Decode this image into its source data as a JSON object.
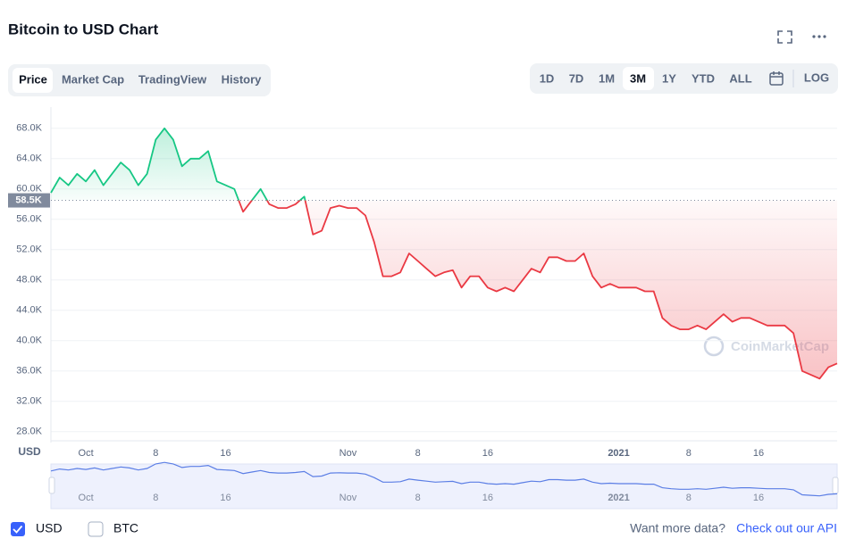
{
  "header": {
    "title": "Bitcoin to USD Chart"
  },
  "tabs": [
    "Price",
    "Market Cap",
    "TradingView",
    "History"
  ],
  "ranges": [
    "1D",
    "7D",
    "1M",
    "3M",
    "1Y",
    "YTD",
    "ALL",
    "LOG"
  ],
  "chart_data": {
    "type": "line",
    "x": [
      null,
      null,
      null,
      null,
      "Oct",
      null,
      null,
      null,
      null,
      null,
      null,
      null,
      "8",
      null,
      null,
      null,
      null,
      null,
      null,
      null,
      "16",
      null,
      null,
      null,
      null,
      null,
      null,
      null,
      null,
      null,
      null,
      null,
      null,
      null,
      "Nov",
      null,
      null,
      null,
      null,
      null,
      null,
      null,
      "8",
      null,
      null,
      null,
      null,
      null,
      null,
      null,
      "16",
      null,
      null,
      null,
      null,
      null,
      null,
      null,
      null,
      null,
      null,
      null,
      null,
      null,
      null,
      "2021",
      null,
      null,
      null,
      null,
      null,
      null,
      null,
      "8",
      null,
      null,
      null,
      null,
      null,
      null,
      null,
      "16",
      null,
      null,
      null,
      null,
      null,
      null,
      null,
      null,
      null
    ],
    "values": [
      59500,
      61500,
      60500,
      62000,
      61000,
      62500,
      60500,
      62000,
      63500,
      62500,
      60500,
      62000,
      66500,
      68000,
      66500,
      63000,
      64000,
      64000,
      65000,
      61000,
      60500,
      60000,
      57000,
      58500,
      60000,
      58000,
      57500,
      57500,
      58000,
      59000,
      54000,
      54500,
      57500,
      57800,
      57500,
      57500,
      56500,
      53000,
      48500,
      48500,
      49000,
      51500,
      50500,
      49500,
      48500,
      49000,
      49300,
      47000,
      48500,
      48500,
      47000,
      46500,
      47000,
      46500,
      48000,
      49500,
      49000,
      51000,
      51000,
      50500,
      50500,
      51500,
      48500,
      47000,
      47500,
      47000,
      47000,
      47000,
      46500,
      46500,
      43000,
      42000,
      41500,
      41500,
      42000,
      41500,
      42500,
      43500,
      42500,
      43000,
      43000,
      42500,
      42000,
      42000,
      42000,
      41000,
      36000,
      35500,
      35000,
      36500,
      37000
    ],
    "ylim": [
      26800,
      70800
    ],
    "yticks": [
      {
        "value": 28000,
        "label": "28.0K"
      },
      {
        "value": 32000,
        "label": "32.0K"
      },
      {
        "value": 36000,
        "label": "36.0K"
      },
      {
        "value": 40000,
        "label": "40.0K"
      },
      {
        "value": 44000,
        "label": "44.0K"
      },
      {
        "value": 48000,
        "label": "48.0K"
      },
      {
        "value": 52000,
        "label": "52.0K"
      },
      {
        "value": 56000,
        "label": "56.0K"
      },
      {
        "value": 60000,
        "label": "60.0K"
      },
      {
        "value": 64000,
        "label": "64.0K"
      },
      {
        "value": 68000,
        "label": "68.0K"
      }
    ],
    "baseline": {
      "value": 58500,
      "label": "58.5K"
    },
    "up_color": "#16c784",
    "down_color": "#ea3943",
    "grid": true,
    "y_unit": "USD",
    "watermark": "CoinMarketCap"
  },
  "footer": {
    "currencies": [
      "USD",
      "BTC"
    ],
    "more": "Want more data?",
    "api": "Check out our API"
  }
}
